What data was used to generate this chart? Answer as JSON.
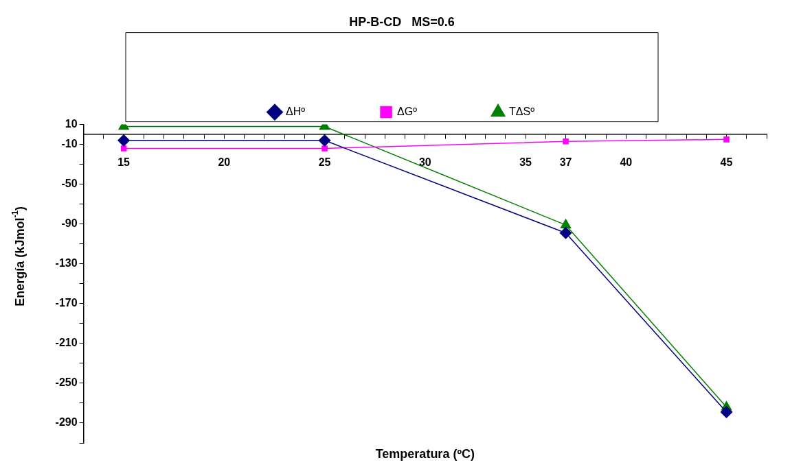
{
  "chart_data": {
    "type": "line",
    "title": "HP-B-CD   MS=0.6",
    "xlabel": "Temperatura (ºC)",
    "ylabel": "Energía (kJmol$^{-1}$)",
    "x": [
      15,
      25,
      37,
      45
    ],
    "series": [
      {
        "name": "ΔHº",
        "color": "#000080",
        "marker": "diamond",
        "values": [
          -6,
          -6,
          -99,
          -279
        ]
      },
      {
        "name": "ΔGº",
        "color": "#ff00ff",
        "marker": "square",
        "values": [
          -14,
          -14,
          -7,
          -5
        ]
      },
      {
        "name": "TΔSº",
        "color": "#008000",
        "marker": "triangle",
        "values": [
          8,
          8,
          -91,
          -274
        ]
      }
    ],
    "xlim": [
      13,
      47
    ],
    "xticks": [
      {
        "value": 13,
        "label": null
      },
      {
        "value": 14,
        "label": null
      },
      15,
      {
        "value": 16,
        "label": null
      },
      {
        "value": 17,
        "label": null
      },
      {
        "value": 18,
        "label": null
      },
      {
        "value": 19,
        "label": null
      },
      20,
      {
        "value": 21,
        "label": null
      },
      {
        "value": 22,
        "label": null
      },
      {
        "value": 23,
        "label": null
      },
      {
        "value": 24,
        "label": null
      },
      25,
      {
        "value": 26,
        "label": null
      },
      {
        "value": 27,
        "label": null
      },
      {
        "value": 28,
        "label": null
      },
      {
        "value": 29,
        "label": null
      },
      30,
      {
        "value": 31,
        "label": null
      },
      {
        "value": 32,
        "label": null
      },
      {
        "value": 33,
        "label": null
      },
      {
        "value": 34,
        "label": null
      },
      35,
      {
        "value": 36,
        "label": null
      },
      37,
      {
        "value": 38,
        "label": null
      },
      {
        "value": 39,
        "label": null
      },
      40,
      {
        "value": 41,
        "label": null
      },
      {
        "value": 42,
        "label": null
      },
      {
        "value": 43,
        "label": null
      },
      {
        "value": 44,
        "label": null
      },
      45,
      {
        "value": 46,
        "label": null
      },
      {
        "value": 47,
        "label": null
      }
    ],
    "ylim": [
      -310,
      10
    ],
    "yticks": [
      10,
      -10,
      {
        "value": -30,
        "label": null
      },
      -50,
      {
        "value": -70,
        "label": null
      },
      -90,
      {
        "value": -110,
        "label": null
      },
      -130,
      {
        "value": -150,
        "label": null
      },
      -170,
      {
        "value": -190,
        "label": null
      },
      -210,
      {
        "value": -230,
        "label": null
      },
      -250,
      {
        "value": -270,
        "label": null
      },
      -290,
      {
        "value": -310,
        "label": null
      }
    ],
    "grid": false,
    "legend": "top",
    "line_style": "solid"
  }
}
